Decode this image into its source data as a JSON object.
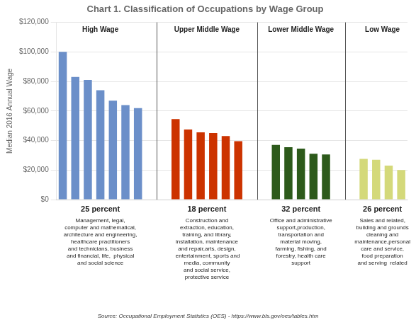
{
  "chart_data": {
    "type": "bar",
    "title": "Chart 1. Classification of Occupations by Wage Group",
    "y_label": "Median 2016 Annual Wage",
    "source": "Source: Occupational Employment Statistics (OES) - https://www.bls.gov/oes/tables.htm",
    "ylim": [
      0,
      120000
    ],
    "yticks": [
      {
        "value": 0,
        "label": "$0"
      },
      {
        "value": 20000,
        "label": "$20,000"
      },
      {
        "value": 40000,
        "label": "$40,000"
      },
      {
        "value": 60000,
        "label": "$60,000"
      },
      {
        "value": 80000,
        "label": "$80,000"
      },
      {
        "value": 100000,
        "label": "$100,000"
      },
      {
        "value": 120000,
        "label": "$120,000"
      }
    ],
    "grid": true,
    "tick_labels": "y",
    "groups": [
      {
        "label": "High Wage",
        "percent": "25 percent",
        "color": "#6b8fc9",
        "values": [
          100000,
          83000,
          81000,
          74000,
          67000,
          64000,
          62000
        ],
        "description": "Management, legal,\ncomputer and mathematical,\narchitecture and engineering,\nhealthcare practitioners\nand technicians, business\nand financial, life,  physical\nand social science"
      },
      {
        "label": "Upper Middle Wage",
        "percent": "18 percent",
        "color": "#cc3300",
        "values": [
          54500,
          47500,
          45500,
          45000,
          43000,
          39500
        ],
        "description": "Construction and\nextraction, education,\ntraining, and library,\ninstallation, maintenance\nand repair,arts, design,\n entertainment, sports and\nmedia, community\nand social service,\nprotective service"
      },
      {
        "label": "Lower Middle Wage",
        "percent": "32 percent",
        "color": "#2d5a1b",
        "values": [
          37000,
          35500,
          34500,
          31000,
          30500
        ],
        "description": "Office and administrative\nsupport,production,\ntransportation and\nmaterial moving,\nfarming, fishing, and\nforestry, health care\nsupport"
      },
      {
        "label": "Low Wage",
        "percent": "26 percent",
        "color": "#d4d97a",
        "values": [
          27500,
          27000,
          23000,
          20000
        ],
        "description": "Sales and related,\nbuilding and grounds\ncleaning and\nmaintenance,personal\ncare and service,\nfood preparation\nand serving  related"
      }
    ]
  }
}
